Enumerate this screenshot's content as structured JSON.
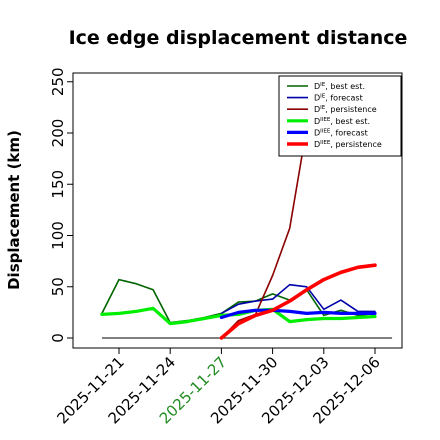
{
  "chart_data": {
    "type": "line",
    "title": "Ice edge displacement distance",
    "xlabel": "",
    "ylabel": "Displacement (km)",
    "ylim": [
      0,
      260
    ],
    "y_ticks": [
      0,
      50,
      100,
      150,
      200,
      250
    ],
    "x_ticks": [
      {
        "label": "2025-11-21",
        "date": "2025-11-21",
        "color": "#000000"
      },
      {
        "label": "2025-11-24",
        "date": "2025-11-24",
        "color": "#000000"
      },
      {
        "label": "2025-11-27",
        "date": "2025-11-27",
        "color": "#228B22"
      },
      {
        "label": "2025-11-30",
        "date": "2025-11-30",
        "color": "#000000"
      },
      {
        "label": "2025-12-03",
        "date": "2025-12-03",
        "color": "#000000"
      },
      {
        "label": "2025-12-06",
        "date": "2025-12-06",
        "color": "#000000"
      }
    ],
    "xlim": [
      "2025-11-19",
      "2025-12-08"
    ],
    "baseline": {
      "y": 0,
      "from": "2025-11-20",
      "to": "2025-12-07",
      "color": "#000000"
    },
    "legend_position": "top-right",
    "series": [
      {
        "name": "D^IE, best est.",
        "legend_main": "D",
        "legend_sup": "IE",
        "legend_rest": ", best est.",
        "color": "#006400",
        "width": 1.6,
        "points": [
          [
            "2025-11-20",
            24
          ],
          [
            "2025-11-21",
            57
          ],
          [
            "2025-11-22",
            53
          ],
          [
            "2025-11-23",
            47
          ],
          [
            "2025-11-24",
            15
          ],
          [
            "2025-11-25",
            17
          ],
          [
            "2025-11-26",
            20
          ],
          [
            "2025-11-27",
            24
          ],
          [
            "2025-11-28",
            35
          ],
          [
            "2025-11-29",
            36
          ],
          [
            "2025-11-30",
            43
          ],
          [
            "2025-12-01",
            37
          ],
          [
            "2025-12-02",
            47
          ],
          [
            "2025-12-03",
            22
          ],
          [
            "2025-12-04",
            27
          ],
          [
            "2025-12-05",
            22
          ],
          [
            "2025-12-06",
            24
          ]
        ]
      },
      {
        "name": "D^IE, forecast",
        "legend_main": "D",
        "legend_sup": "IE",
        "legend_rest": ", forecast",
        "color": "#0000AA",
        "width": 1.6,
        "points": [
          [
            "2025-11-27",
            24
          ],
          [
            "2025-11-28",
            33
          ],
          [
            "2025-11-29",
            36
          ],
          [
            "2025-11-30",
            38
          ],
          [
            "2025-12-01",
            52
          ],
          [
            "2025-12-02",
            50
          ],
          [
            "2025-12-03",
            28
          ],
          [
            "2025-12-04",
            37
          ],
          [
            "2025-12-05",
            26
          ],
          [
            "2025-12-06",
            26
          ]
        ]
      },
      {
        "name": "D^IE, persistence",
        "legend_main": "D",
        "legend_sup": "IE",
        "legend_rest": ", persistence",
        "color": "#8B0000",
        "width": 1.6,
        "points": [
          [
            "2025-11-27",
            0
          ],
          [
            "2025-11-28",
            17
          ],
          [
            "2025-11-29",
            23
          ],
          [
            "2025-11-30",
            61
          ],
          [
            "2025-12-01",
            107
          ],
          [
            "2025-12-02",
            205
          ]
        ]
      },
      {
        "name": "D^IIEE, best est.",
        "legend_main": "D",
        "legend_sup": "IIEE",
        "legend_rest": ", best est.",
        "color": "#00EE00",
        "width": 3.2,
        "points": [
          [
            "2025-11-20",
            23
          ],
          [
            "2025-11-21",
            24
          ],
          [
            "2025-11-22",
            26
          ],
          [
            "2025-11-23",
            29
          ],
          [
            "2025-11-24",
            14
          ],
          [
            "2025-11-25",
            16
          ],
          [
            "2025-11-26",
            19
          ],
          [
            "2025-11-27",
            22
          ],
          [
            "2025-11-28",
            23
          ],
          [
            "2025-11-29",
            27
          ],
          [
            "2025-11-30",
            28
          ],
          [
            "2025-12-01",
            16
          ],
          [
            "2025-12-02",
            18
          ],
          [
            "2025-12-03",
            19
          ],
          [
            "2025-12-04",
            19
          ],
          [
            "2025-12-05",
            20
          ],
          [
            "2025-12-06",
            21
          ]
        ]
      },
      {
        "name": "D^IIEE, forecast",
        "legend_main": "D",
        "legend_sup": "IIEE",
        "legend_rest": ", forecast",
        "color": "#0000FF",
        "width": 3.2,
        "points": [
          [
            "2025-11-27",
            20
          ],
          [
            "2025-11-28",
            25
          ],
          [
            "2025-11-29",
            27
          ],
          [
            "2025-11-30",
            27
          ],
          [
            "2025-12-01",
            26
          ],
          [
            "2025-12-02",
            24
          ],
          [
            "2025-12-03",
            25
          ],
          [
            "2025-12-04",
            24
          ],
          [
            "2025-12-05",
            24
          ],
          [
            "2025-12-06",
            24
          ]
        ]
      },
      {
        "name": "D^IIEE, persistence",
        "legend_main": "D",
        "legend_sup": "IIEE",
        "legend_rest": ", persistence",
        "color": "#FF0000",
        "width": 3.6,
        "points": [
          [
            "2025-11-27",
            0
          ],
          [
            "2025-11-28",
            14
          ],
          [
            "2025-11-29",
            22
          ],
          [
            "2025-11-30",
            27
          ],
          [
            "2025-12-01",
            36
          ],
          [
            "2025-12-02",
            47
          ],
          [
            "2025-12-03",
            57
          ],
          [
            "2025-12-04",
            64
          ],
          [
            "2025-12-05",
            69
          ],
          [
            "2025-12-06",
            71
          ]
        ]
      }
    ]
  }
}
